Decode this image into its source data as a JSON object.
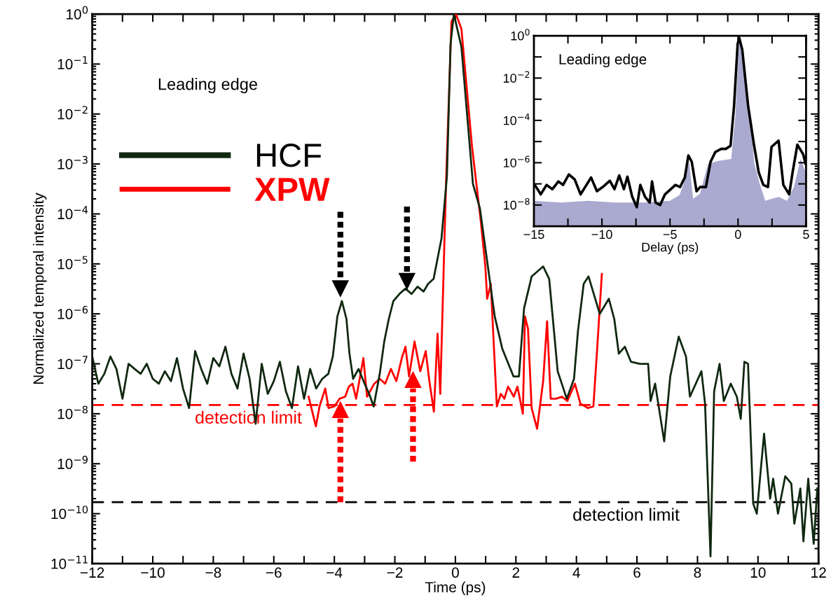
{
  "chart_data": [
    {
      "type": "line",
      "xlabel": "Time (ps)",
      "ylabel": "Normalized temporal intensity",
      "log": "y",
      "legend": "top left",
      "grid": false,
      "marker": "none",
      "xlim": [
        -12,
        12
      ],
      "xticks": [
        {
          "value": -12,
          "label": "−12"
        },
        {
          "value": -11,
          "label": null
        },
        {
          "value": -10,
          "label": "−10"
        },
        {
          "value": -9,
          "label": null
        },
        {
          "value": -8,
          "label": "−8"
        },
        {
          "value": -7,
          "label": null
        },
        {
          "value": -6,
          "label": "−6"
        },
        {
          "value": -5,
          "label": null
        },
        {
          "value": -4,
          "label": "−4"
        },
        {
          "value": -3,
          "label": null
        },
        {
          "value": -2,
          "label": "−2"
        },
        {
          "value": -1,
          "label": null
        },
        0,
        {
          "value": 1,
          "label": null
        },
        2,
        {
          "value": 3,
          "label": null
        },
        4,
        {
          "value": 5,
          "label": null
        },
        6,
        {
          "value": 7,
          "label": null
        },
        8,
        {
          "value": 9,
          "label": null
        },
        10,
        {
          "value": 11,
          "label": null
        },
        12
      ],
      "ylim": [
        1e-11,
        1
      ],
      "yticks": [
        {
          "value": 1e-11,
          "label": "10$^{−11}$"
        },
        {
          "value": 1e-10,
          "label": "10$^{−10}$"
        },
        {
          "value": 1e-09,
          "label": "10$^{−9}$"
        },
        {
          "value": 1e-08,
          "label": "10$^{−8}$"
        },
        {
          "value": 1e-07,
          "label": "10$^{−7}$"
        },
        {
          "value": 1e-06,
          "label": "10$^{−6}$"
        },
        {
          "value": 1e-05,
          "label": "10$^{−5}$"
        },
        {
          "value": 0.0001,
          "label": "10$^{−4}$"
        },
        {
          "value": 0.001,
          "label": "10$^{−3}$"
        },
        {
          "value": 0.01,
          "label": "10$^{−2}$"
        },
        {
          "value": 0.1,
          "label": "10$^{−1}$"
        },
        {
          "value": 1,
          "label": "10$^{0}$"
        }
      ],
      "annotations": [
        "Leading edge"
      ],
      "ref_lines": [
        {
          "axis": "y",
          "value": 1.5e-08,
          "label": "detection limit",
          "color": "#ff0000",
          "line_style": "dashed"
        },
        {
          "axis": "y",
          "value": 1.7e-10,
          "label": "detection limit",
          "color": "#000000",
          "line_style": "dashed"
        }
      ],
      "series": [
        {
          "name": "HCF",
          "color": "#102810",
          "x": [
            -12.0,
            -11.8,
            -11.6,
            -11.4,
            -11.2,
            -11.0,
            -10.8,
            -10.6,
            -10.4,
            -10.2,
            -10.0,
            -9.8,
            -9.6,
            -9.4,
            -9.2,
            -9.0,
            -8.8,
            -8.6,
            -8.4,
            -8.2,
            -8.0,
            -7.8,
            -7.6,
            -7.4,
            -7.2,
            -7.0,
            -6.8,
            -6.6,
            -6.4,
            -6.2,
            -6.0,
            -5.8,
            -5.6,
            -5.4,
            -5.2,
            -5.0,
            -4.8,
            -4.6,
            -4.4,
            -4.2,
            -4.05,
            -3.9,
            -3.75,
            -3.6,
            -3.5,
            -3.38,
            -3.2,
            -3.0,
            -2.85,
            -2.7,
            -2.5,
            -2.35,
            -2.2,
            -2.05,
            -1.85,
            -1.65,
            -1.45,
            -1.25,
            -1.05,
            -0.9,
            -0.72,
            -0.46,
            -0.28,
            -0.16,
            -0.05,
            0.2,
            0.58,
            0.81,
            1.3,
            1.55,
            1.92,
            2.1,
            2.27,
            2.52,
            2.9,
            3.1,
            3.38,
            3.68,
            3.92,
            4.05,
            4.24,
            4.4,
            4.77,
            5.07,
            5.25,
            5.4,
            5.6,
            5.8,
            6.1,
            6.37,
            6.45,
            6.6,
            6.9,
            7.1,
            7.38,
            7.62,
            7.75,
            8.13,
            8.25,
            8.43,
            8.55,
            8.73,
            8.87,
            9.1,
            9.3,
            9.43,
            9.55,
            9.67,
            9.84,
            9.96,
            10.2,
            10.4,
            10.5,
            10.66,
            10.9,
            11.1,
            11.2,
            11.4,
            11.5,
            11.66,
            11.84,
            11.96
          ],
          "values": [
            1.4e-07,
            4e-08,
            6.3e-08,
            1.4e-07,
            7.9e-08,
            2e-08,
            1e-07,
            7.9e-08,
            6.3e-08,
            1e-07,
            5e-08,
            4e-08,
            7.1e-08,
            4.5e-08,
            1.3e-07,
            3.2e-08,
            1.3e-08,
            1.8e-07,
            7.9e-08,
            4e-08,
            1.3e-07,
            8.9e-08,
            2.2e-07,
            6.3e-08,
            3.2e-08,
            1.6e-07,
            5e-08,
            6.3e-09,
            1e-07,
            2.5e-08,
            4.5e-08,
            1.1e-07,
            2.8e-08,
            1.3e-08,
            8.9e-08,
            2e-08,
            7.9e-08,
            3.2e-08,
            5e-08,
            6.3e-08,
            1.4e-07,
            8.9e-07,
            1.8e-06,
            7.9e-07,
            1.6e-07,
            5e-08,
            7.9e-08,
            4e-08,
            2.5e-08,
            1.4e-08,
            6.3e-08,
            2.8e-07,
            7.9e-07,
            1.8e-06,
            2.5e-06,
            3.2e-06,
            2.5e-06,
            3.5e-06,
            2.8e-06,
            4e-06,
            5e-06,
            3.2e-05,
            0.00056,
            0.25,
            1,
            0.22,
            0.0004,
            0.00013,
            8.9e-07,
            2e-07,
            5.6e-08,
            5.6e-08,
            1.3e-06,
            5.6e-06,
            8.9e-06,
            5e-06,
            7.1e-08,
            2e-08,
            5e-08,
            4.5e-07,
            4e-06,
            5.6e-06,
            1e-06,
            2e-06,
            7.9e-07,
            1.6e-07,
            2.2e-07,
            1.1e-07,
            1e-07,
            1e-07,
            1.8e-08,
            4e-08,
            2.8e-09,
            5.6e-08,
            3.5e-07,
            1.4e-07,
            2.2e-08,
            7.1e-08,
            1.6e-08,
            1.4e-11,
            2.8e-08,
            1e-07,
            1.8e-08,
            4e-08,
            2.2e-08,
            7.9e-09,
            1.1e-07,
            1e-07,
            1.6e-10,
            1e-10,
            4e-09,
            2e-10,
            5e-10,
            1e-10,
            5.6e-10,
            4e-10,
            6.3e-11,
            3.2e-10,
            2.8e-11,
            5e-10,
            2.5e-11,
            3.2e-10
          ]
        },
        {
          "name": "XPW",
          "color": "#ff0000",
          "x": [
            -4.85,
            -4.61,
            -4.49,
            -4.3,
            -4.19,
            -4.0,
            -3.83,
            -3.64,
            -3.52,
            -3.4,
            -3.28,
            -3.04,
            -2.92,
            -2.68,
            -2.5,
            -2.32,
            -2.13,
            -1.95,
            -1.77,
            -1.65,
            -1.53,
            -1.35,
            -1.16,
            -0.98,
            -0.86,
            -0.71,
            -0.59,
            -0.5,
            -0.31,
            -0.13,
            0.02,
            0.2,
            0.55,
            0.84,
            0.99,
            1.05,
            1.17,
            1.37,
            1.5,
            1.62,
            1.74,
            1.93,
            2.05,
            2.23,
            2.3,
            2.4,
            2.52,
            2.7,
            2.9,
            3.03,
            3.15,
            3.33,
            3.52,
            3.7,
            3.95,
            4.13,
            4.38,
            4.56,
            4.68,
            4.84
          ],
          "values": [
            2.2e-08,
            5.6e-09,
            1.4e-08,
            3.2e-08,
            1.3e-08,
            1.4e-08,
            2e-08,
            2.2e-08,
            3.5e-08,
            4e-08,
            2e-08,
            1.3e-07,
            2.2e-08,
            4e-08,
            5e-08,
            4e-08,
            7.9e-08,
            4.5e-08,
            1.3e-07,
            2.2e-07,
            5.6e-08,
            2.8e-07,
            7.1e-08,
            1.8e-07,
            4.5e-08,
            1.1e-08,
            4e-07,
            2.5e-08,
            0.0004,
            0.71,
            1,
            0.5,
            0.0022,
            7.1e-05,
            8.9e-06,
            2e-06,
            4e-06,
            1.4e-08,
            2.5e-08,
            2e-08,
            3.5e-08,
            2.2e-08,
            3.5e-08,
            1e-08,
            8.9e-07,
            5e-07,
            1.3e-08,
            5e-09,
            4.5e-08,
            7.1e-07,
            2e-08,
            2e-08,
            2.2e-08,
            1.8e-08,
            4e-08,
            1.6e-08,
            1.3e-08,
            1.4e-08,
            1.8e-07,
            6.3e-06
          ]
        }
      ]
    },
    {
      "type": "line",
      "xlabel": "Delay (ps)",
      "log": "y",
      "grid": false,
      "legend": false,
      "marker": "none",
      "xlim": [
        -15,
        5
      ],
      "xticks": [
        {
          "value": -15,
          "label": "−15"
        },
        {
          "value": -12.5,
          "label": null
        },
        {
          "value": -10,
          "label": "−10"
        },
        {
          "value": -7.5,
          "label": null
        },
        {
          "value": -5,
          "label": "−5"
        },
        {
          "value": -2.5,
          "label": null
        },
        0,
        {
          "value": 2.5,
          "label": null
        },
        5
      ],
      "ylim": [
        1e-09,
        1
      ],
      "yticks": [
        {
          "value": 1e-09,
          "label": null
        },
        {
          "value": 1e-08,
          "label": "10$^{−8}$"
        },
        {
          "value": 1e-07,
          "label": null
        },
        {
          "value": 1e-06,
          "label": "10$^{−6}$"
        },
        {
          "value": 1e-05,
          "label": null
        },
        {
          "value": 0.0001,
          "label": "10$^{−4}$"
        },
        {
          "value": 0.001,
          "label": null
        },
        {
          "value": 0.01,
          "label": "10$^{−2}$"
        },
        {
          "value": 0.1,
          "label": null
        },
        {
          "value": 1,
          "label": "10$^{0}$"
        }
      ],
      "annotations": [
        "Leading edge"
      ],
      "series": [
        {
          "type": "area",
          "color": "#aaaad0",
          "x": [
            -15,
            -13,
            -11,
            -9,
            -7,
            -5,
            -4.3,
            -4,
            -3.6,
            -3.3,
            -2.8,
            -2.2,
            -1.5,
            -0.5,
            -0.2,
            0.1,
            0.4,
            0.8,
            1.2,
            1.6,
            2.0,
            2.5,
            3.0,
            3.6,
            4.1,
            4.6,
            5.0
          ],
          "values": [
            1.6e-08,
            1.3e-08,
            1.6e-08,
            1.3e-08,
            1.3e-08,
            1.6e-08,
            3e-08,
            1e-07,
            1.2e-06,
            2e-08,
            3.4e-08,
            9e-07,
            1.2e-06,
            1.5e-06,
            0.00015,
            0.83,
            0.024,
            0.0005,
            9e-07,
            1e-07,
            1.6e-08,
            2e-08,
            2.4e-08,
            1.6e-08,
            7e-08,
            1.5e-06,
            3.3e-07
          ]
        },
        {
          "type": "line",
          "color": "#000000",
          "x": [
            -14.93,
            -14.5,
            -14.07,
            -13.64,
            -13.2,
            -12.86,
            -12.43,
            -12.0,
            -11.57,
            -11.14,
            -10.8,
            -10.37,
            -9.94,
            -9.42,
            -9.08,
            -8.73,
            -8.39,
            -8.13,
            -7.78,
            -7.44,
            -7.18,
            -6.84,
            -6.49,
            -6.32,
            -6.06,
            -5.72,
            -5.37,
            -4.94,
            -4.6,
            -4.26,
            -3.91,
            -3.65,
            -3.4,
            -3.05,
            -2.79,
            -2.36,
            -2.02,
            -1.67,
            -1.24,
            -0.9,
            -0.55,
            -0.29,
            -0.03,
            0.09,
            0.31,
            0.74,
            1.17,
            1.52,
            1.86,
            2.2,
            2.46,
            2.98,
            3.33,
            3.76,
            4.01,
            4.36,
            4.79,
            4.96
          ],
          "values": [
            8.9e-08,
            3.2e-08,
            8.9e-08,
            5.6e-08,
            1.3e-07,
            8.9e-08,
            2.8e-07,
            1.6e-07,
            3.2e-08,
            8.9e-08,
            2e-07,
            4.5e-08,
            7.1e-08,
            1.4e-07,
            5.6e-08,
            2.5e-07,
            5.6e-08,
            2.2e-07,
            2.5e-08,
            7.9e-09,
            8.9e-08,
            2.5e-08,
            1.3e-08,
            1.3e-07,
            1.3e-08,
            1e-08,
            3.2e-08,
            5.6e-08,
            8.9e-08,
            7.1e-08,
            2e-07,
            2.2e-06,
            1.1e-06,
            4.5e-08,
            7.1e-08,
            7.1e-08,
            1.1e-06,
            3.2e-06,
            4.5e-06,
            4.5e-06,
            6.3e-06,
            0.0005,
            0.4,
            0.79,
            0.22,
            0.0005,
            7.1e-06,
            3.5e-07,
            8.9e-08,
            7.1e-08,
            5.6e-06,
            1.1e-05,
            8.9e-08,
            3.2e-08,
            3.5e-07,
            7.1e-06,
            2.5e-06,
            8.9e-07
          ]
        }
      ]
    }
  ]
}
